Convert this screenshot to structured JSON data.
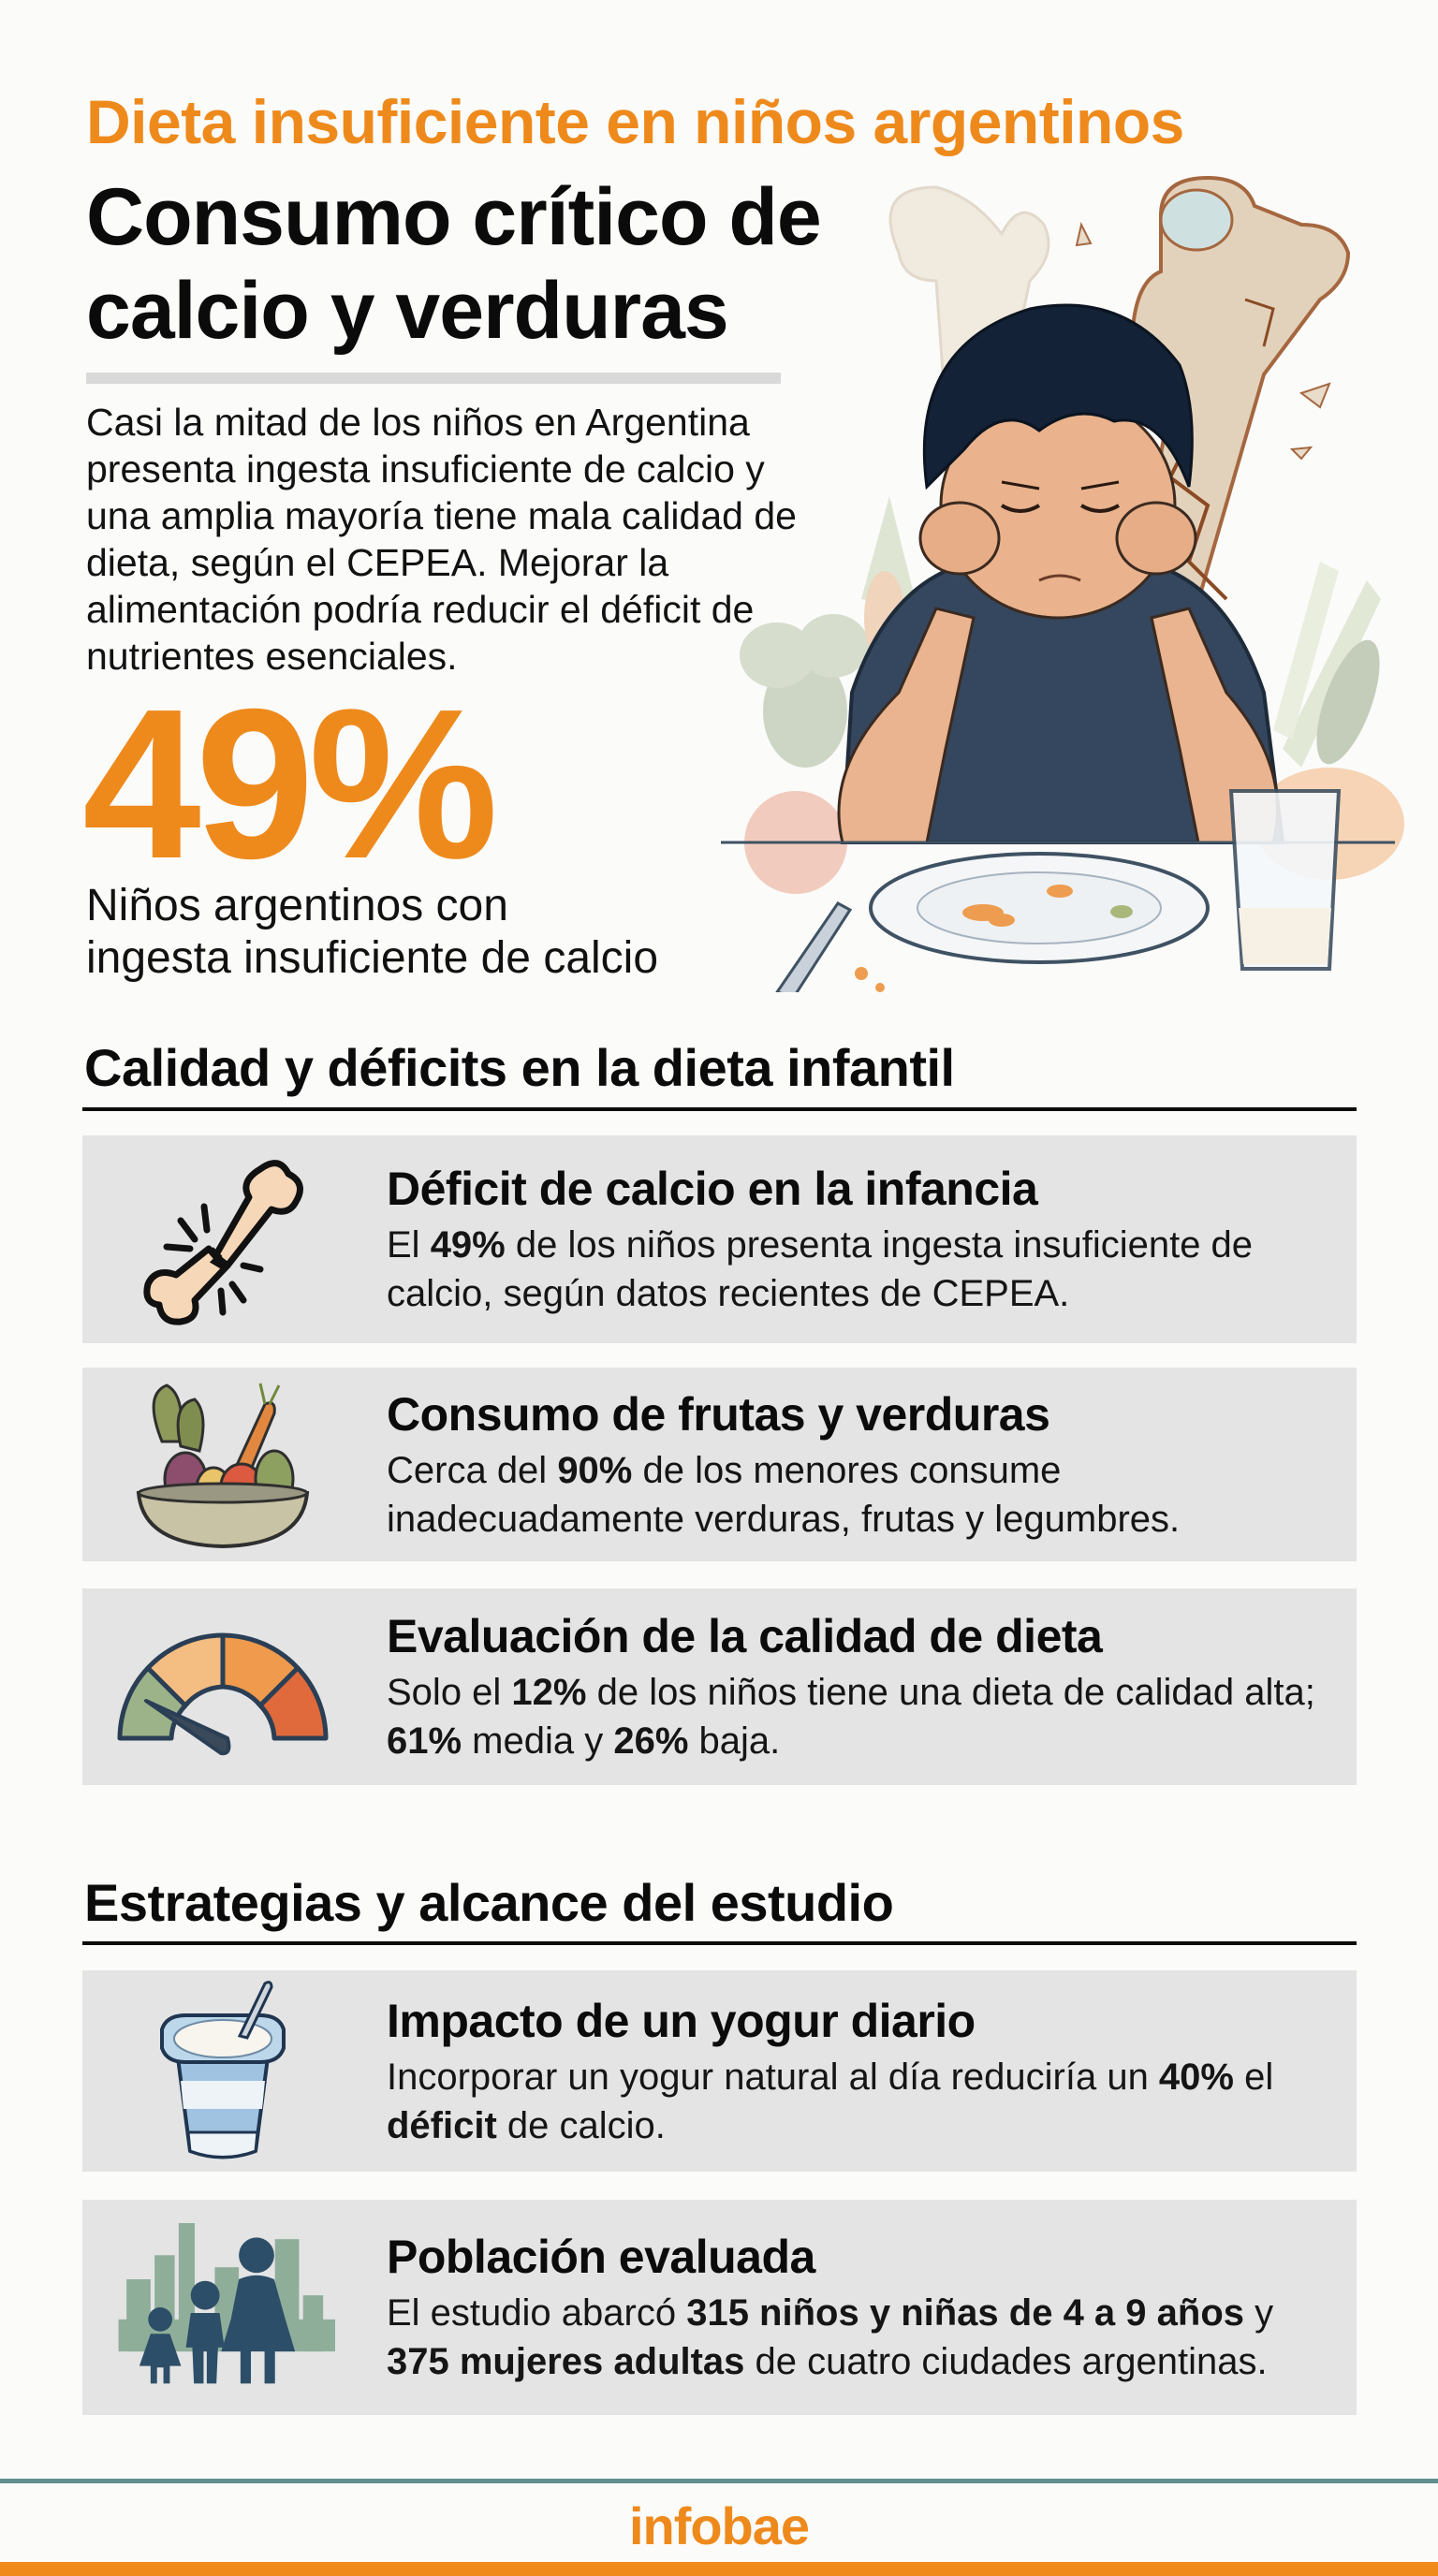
{
  "header": {
    "kicker": "Dieta insuficiente en niños argentinos",
    "headline_line1": "Consumo crítico de",
    "headline_line2": "calcio y verduras",
    "intro": "Casi la mitad de los niños en Argentina presenta ingesta insuficiente de calcio y una amplia mayoría tiene mala calidad de dieta, según el CEPEA. Mejorar la alimentación podría reducir el déficit de nutrientes esenciales.",
    "hero_illustration": "sad-boy-empty-plate-cracked-bone"
  },
  "key_stat": {
    "value": "49%",
    "caption_line1": "Niños argentinos con",
    "caption_line2": "ingesta insuficiente de calcio"
  },
  "sections": [
    {
      "title": "Calidad y déficits en la dieta infantil",
      "cards": [
        {
          "icon": "broken-bone-icon",
          "title": "Déficit de calcio en la infancia",
          "body": [
            {
              "t": "El ",
              "b": false
            },
            {
              "t": "49%",
              "b": true
            },
            {
              "t": " de los niños presenta ingesta insuficiente de calcio, según datos recientes de CEPEA.",
              "b": false
            }
          ]
        },
        {
          "icon": "vegetable-bowl-icon",
          "title": "Consumo de frutas y verduras",
          "body": [
            {
              "t": "Cerca del ",
              "b": false
            },
            {
              "t": "90%",
              "b": true
            },
            {
              "t": " de los menores consume inadecuadamente verduras, frutas y legumbres.",
              "b": false
            }
          ]
        },
        {
          "icon": "gauge-icon",
          "title": "Evaluación de la calidad de dieta",
          "body": [
            {
              "t": "Solo el ",
              "b": false
            },
            {
              "t": "12%",
              "b": true
            },
            {
              "t": " de los niños tiene una dieta de calidad alta; ",
              "b": false
            },
            {
              "t": "61%",
              "b": true
            },
            {
              "t": " media y ",
              "b": false
            },
            {
              "t": "26%",
              "b": true
            },
            {
              "t": " baja.",
              "b": false
            }
          ]
        }
      ]
    },
    {
      "title": "Estrategias y alcance del estudio",
      "cards": [
        {
          "icon": "yogurt-cup-icon",
          "title": "Impacto de un yogur diario",
          "body": [
            {
              "t": "Incorporar un yogur natural al día reduciría un ",
              "b": false
            },
            {
              "t": "40%",
              "b": true
            },
            {
              "t": " el ",
              "b": false
            },
            {
              "t": "déficit",
              "b": true
            },
            {
              "t": " de calcio.",
              "b": false
            }
          ]
        },
        {
          "icon": "family-city-icon",
          "title": "Población evaluada",
          "body": [
            {
              "t": "El estudio abarcó ",
              "b": false
            },
            {
              "t": "315 niños y niñas de 4 a 9 años",
              "b": true
            },
            {
              "t": " y ",
              "b": false
            },
            {
              "t": "375 mujeres adultas",
              "b": true
            },
            {
              "t": " de cuatro ciudades argentinas.",
              "b": false
            }
          ]
        }
      ]
    }
  ],
  "footer": {
    "brand": "infobae"
  },
  "colors": {
    "accent_orange": "#ee8a1c",
    "card_bg": "#e4e4e4",
    "footer_teal": "#5f8f8e",
    "text": "#0b0b0b"
  }
}
